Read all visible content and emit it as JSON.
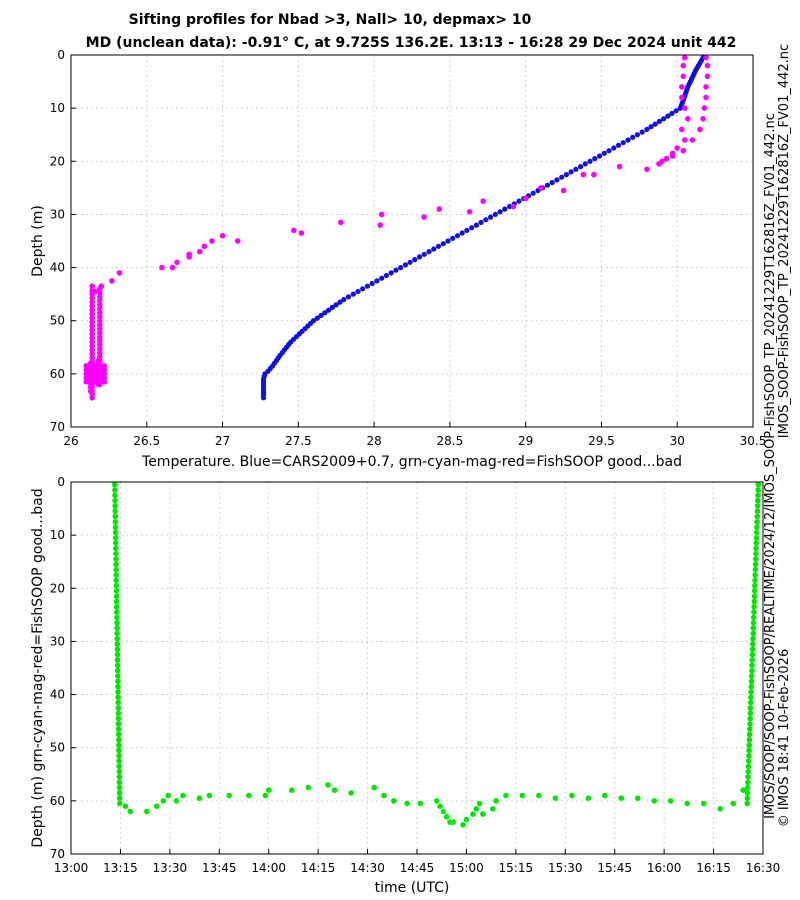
{
  "chart_data": [
    {
      "type": "scatter",
      "title": "Sifting profiles for Nbad >3, Nall> 10, depmax> 10",
      "subtitle": "MD (unclean data): -0.91° C, at 9.725S 136.2E. 13:13 - 16:28 29 Dec 2024 unit 442",
      "xlabel": "Temperature. Blue=CARS2009+0.7, grn-cyan-mag-red=FishSOOP good...bad",
      "ylabel": "Depth (m)",
      "xlim": [
        26,
        30.5
      ],
      "ylim": [
        70,
        0
      ],
      "xticks": [
        "26",
        "26.5",
        "27",
        "27.5",
        "28",
        "28.5",
        "29",
        "29.5",
        "30",
        "30.5"
      ],
      "yticks": [
        "0",
        "10",
        "20",
        "30",
        "40",
        "50",
        "60",
        "70"
      ],
      "grid": true,
      "series": [
        {
          "color": "#1010e0",
          "mode": "line",
          "x": [
            30.17,
            30.12,
            30.07,
            30.04,
            30.02,
            29.8,
            29.55,
            29.3,
            29.05,
            28.8,
            28.55,
            28.3,
            28.05,
            27.8,
            27.6,
            27.45,
            27.38,
            27.33,
            27.3,
            27.28,
            27.27,
            27.27
          ],
          "y": [
            0.5,
            3,
            6,
            8.5,
            10,
            14,
            18,
            22,
            26,
            30,
            34,
            38,
            42,
            46,
            50,
            54,
            56.5,
            58.5,
            59.5,
            60,
            61,
            64.5
          ],
          "step": 0.5
        },
        {
          "color": "#ff00ff",
          "mode": "points",
          "x": [
            30.05,
            30.04,
            30.04,
            30.03,
            30.03,
            30.05,
            30.07,
            30.03,
            30.05,
            30.04,
            29.97,
            29.93,
            29.88,
            29.8,
            29.62,
            29.45,
            29.38,
            29.25,
            29.1,
            29.0,
            28.92,
            28.72,
            28.63,
            28.43,
            28.33,
            28.05,
            28.04,
            27.78,
            27.52,
            27.47,
            27.1,
            27.0,
            26.93,
            26.88,
            26.85,
            26.78,
            26.78,
            26.7,
            26.67,
            26.6,
            26.32,
            26.27,
            26.2,
            26.16,
            30.19,
            30.2,
            30.2,
            30.19,
            30.19,
            30.18,
            30.17,
            30.15,
            30.1,
            30.0,
            29.97,
            29.9
          ],
          "y": [
            0.5,
            2,
            4,
            6,
            8,
            10,
            12,
            14,
            16,
            18,
            18.5,
            19.5,
            20.5,
            21.5,
            21,
            22.5,
            22.5,
            25.5,
            25,
            27,
            28.5,
            27.5,
            29.5,
            29,
            30.5,
            30,
            32,
            31.5,
            33.5,
            33,
            35,
            34,
            35,
            36,
            37,
            37.5,
            38,
            39,
            40,
            40,
            41,
            42.5,
            43.5,
            44.5,
            0.5,
            2,
            4,
            6,
            8,
            10,
            12,
            14,
            16,
            17.5,
            19,
            20
          ]
        },
        {
          "color": "#ff00ff",
          "mode": "column",
          "x": [
            26.14,
            26.19,
            26.13,
            26.18
          ],
          "y_from": [
            43.5,
            44,
            58,
            57.5
          ],
          "y_to": [
            64.5,
            62.5,
            63.5,
            62
          ],
          "step": 0.75,
          "cluster": {
            "x_from": 26.1,
            "x_to": 26.22,
            "y_from": 58.5,
            "y_to": 61.5
          }
        }
      ]
    },
    {
      "type": "scatter",
      "xlabel": "time (UTC)",
      "ylabel": "Depth (m) grn-cyan-mag-red=FishSOOP good...bad",
      "ylim": [
        70,
        0
      ],
      "xlim": [
        "13:00",
        "16:30"
      ],
      "xticks": [
        "13:00",
        "13:15",
        "13:30",
        "13:45",
        "14:00",
        "14:15",
        "14:30",
        "14:45",
        "15:00",
        "15:15",
        "15:30",
        "15:45",
        "16:00",
        "16:15",
        "16:30"
      ],
      "yticks": [
        "0",
        "10",
        "20",
        "30",
        "40",
        "50",
        "60",
        "70"
      ],
      "grid": true,
      "series": [
        {
          "color": "#00e600",
          "mode": "points",
          "descent": {
            "t_from": "13:13.3",
            "t_to": "13:14.8",
            "d_from": 0.5,
            "d_to": 60.5,
            "step": 1.0
          },
          "ascent": {
            "t_from": "16:25.2",
            "t_to": "16:28.6",
            "d_from": 60.5,
            "d_to": 0.5,
            "step": 1.0
          },
          "t": [
            "13:16.5",
            "13:18",
            "13:23",
            "13:26",
            "13:28",
            "13:29.5",
            "13:32",
            "13:34",
            "13:39",
            "13:42",
            "13:48",
            "13:54",
            "13:59",
            "14:00",
            "14:07",
            "14:12",
            "14:18",
            "14:20",
            "14:25",
            "14:32",
            "14:35",
            "14:38",
            "14:42",
            "14:46",
            "14:51",
            "14:52",
            "14:53",
            "14:54",
            "14:55",
            "14:56",
            "14:59",
            "15:00",
            "15:02",
            "15:03",
            "15:04",
            "15:05",
            "15:08",
            "15:09",
            "15:12",
            "15:17",
            "15:22",
            "15:27",
            "15:32",
            "15:37",
            "15:42",
            "15:47",
            "15:52",
            "15:57",
            "16:02",
            "16:07",
            "16:12",
            "16:17",
            "16:21",
            "16:24"
          ],
          "d": [
            61,
            62,
            62,
            61,
            60,
            59,
            60,
            59,
            59.5,
            59,
            59,
            59,
            59,
            58,
            58,
            57.5,
            57,
            58,
            58.5,
            57.5,
            59,
            60,
            60.5,
            60.5,
            60,
            61,
            62,
            63,
            64,
            64,
            64.5,
            63.5,
            62.5,
            61.5,
            60.5,
            62.5,
            61.5,
            60,
            59,
            59,
            59,
            59.5,
            59,
            59.5,
            59,
            59.5,
            59.5,
            60,
            60,
            60.5,
            60.5,
            61.5,
            60.5,
            58
          ]
        }
      ]
    }
  ],
  "side_text_right": "IMOS_SOOP-FishSOOP_TP_20241229T162816Z_FV01_442.nc",
  "side_text_right2": "IMOS/SOOP/SOOP-FishSOOP/REALTIME/2024/12/IMOS_SOOP-FishSOOP_TP_20241229T162816Z_FV01_442.nc",
  "side_text_right3": "© IMOS 18:41 10-Feb-2026"
}
